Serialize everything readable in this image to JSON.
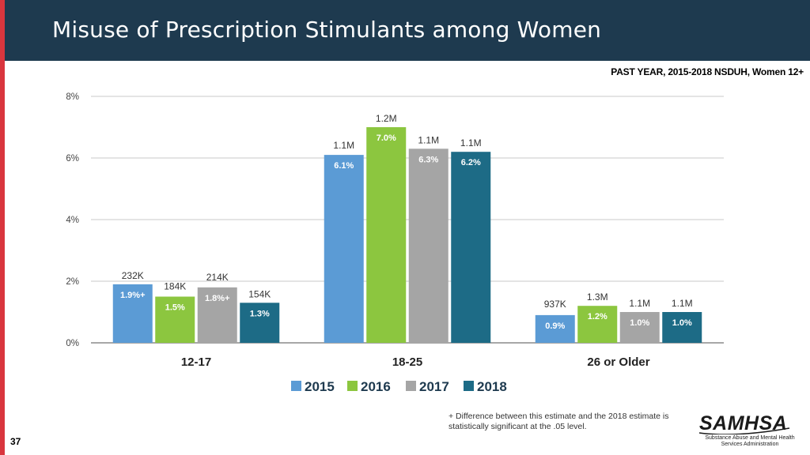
{
  "header": {
    "title": "Misuse of Prescription Stimulants among Women"
  },
  "subtitle": "PAST YEAR, 2015-2018 NSDUH, Women 12+",
  "chart_data": {
    "type": "bar",
    "categories": [
      "12-17",
      "18-25",
      "26 or Older"
    ],
    "series": [
      {
        "name": "2015",
        "color": "#5b9bd5",
        "values": [
          1.9,
          6.1,
          0.9
        ],
        "labels": [
          "1.9%",
          "6.1%",
          "0.9%"
        ],
        "counts": [
          "232K",
          "1.1M",
          "937K"
        ],
        "sig": [
          true,
          false,
          false
        ]
      },
      {
        "name": "2016",
        "color": "#8cc63f",
        "values": [
          1.5,
          7.0,
          1.2
        ],
        "labels": [
          "1.5%",
          "7.0%",
          "1.2%"
        ],
        "counts": [
          "184K",
          "1.2M",
          "1.3M"
        ],
        "sig": [
          false,
          false,
          false
        ]
      },
      {
        "name": "2017",
        "color": "#a5a5a5",
        "values": [
          1.8,
          6.3,
          1.0
        ],
        "labels": [
          "1.8%",
          "6.3%",
          "1.0%"
        ],
        "counts": [
          "214K",
          "1.1M",
          "1.1M"
        ],
        "sig": [
          true,
          false,
          false
        ]
      },
      {
        "name": "2018",
        "color": "#1d6b86",
        "values": [
          1.3,
          6.2,
          1.0
        ],
        "labels": [
          "1.3%",
          "6.2%",
          "1.0%"
        ],
        "counts": [
          "154K",
          "1.1M",
          "1.1M"
        ],
        "sig": [
          false,
          false,
          false
        ]
      }
    ],
    "y_ticks": [
      "0%",
      "2%",
      "4%",
      "6%",
      "8%"
    ],
    "ylim": [
      0,
      8
    ],
    "sig_marker": "+",
    "legend_position": "bottom"
  },
  "footnote": "+ Difference between this estimate and the 2018 estimate is statistically significant at the .05 level.",
  "page_number": "37",
  "logo": {
    "name": "SAMHSA",
    "tagline": "Substance Abuse and Mental Health Services Administration"
  }
}
